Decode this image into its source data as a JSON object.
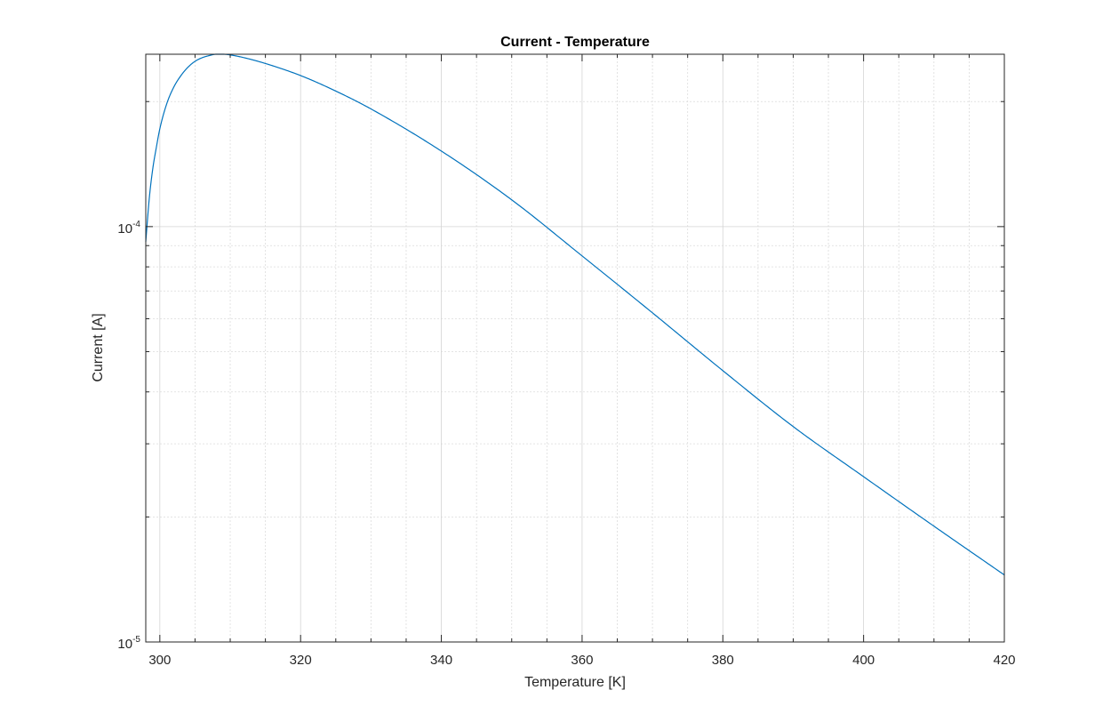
{
  "chart_data": {
    "type": "line",
    "title": "Current - Temperature",
    "xlabel": "Temperature [K]",
    "ylabel": "Current [A]",
    "xlim": [
      298,
      420
    ],
    "ylim": [
      1e-05,
      0.00026
    ],
    "yscale": "log",
    "grid": true,
    "minor_grid": true,
    "x_ticks": [
      300,
      320,
      340,
      360,
      380,
      400,
      420
    ],
    "x_tick_labels": [
      "300",
      "320",
      "340",
      "360",
      "380",
      "400",
      "420"
    ],
    "y_ticks": [
      {
        "value": 1e-05,
        "base": "10",
        "exp": "-5"
      },
      {
        "value": 0.0001,
        "base": "10",
        "exp": "-4"
      }
    ],
    "series": [
      {
        "color": "#0072BD",
        "x": [
          298,
          298.5,
          299,
          299.5,
          300,
          301,
          302,
          303,
          304,
          305,
          306,
          307,
          308,
          309,
          310,
          312,
          315,
          320,
          325,
          330,
          340,
          350,
          360,
          370,
          380,
          390,
          400,
          410,
          420
        ],
        "y": [
          9.2e-05,
          0.000117,
          0.000138,
          0.000155,
          0.000172,
          0.000198,
          0.000217,
          0.000231,
          0.000242,
          0.00025,
          0.000255,
          0.000258,
          0.00026,
          0.00026,
          0.000259,
          0.000255,
          0.000247,
          0.000231,
          0.000212,
          0.000192,
          0.000152,
          0.000116,
          8.5e-05,
          6.2e-05,
          4.5e-05,
          3.3e-05,
          2.5e-05,
          1.9e-05,
          1.45e-05
        ]
      }
    ]
  }
}
